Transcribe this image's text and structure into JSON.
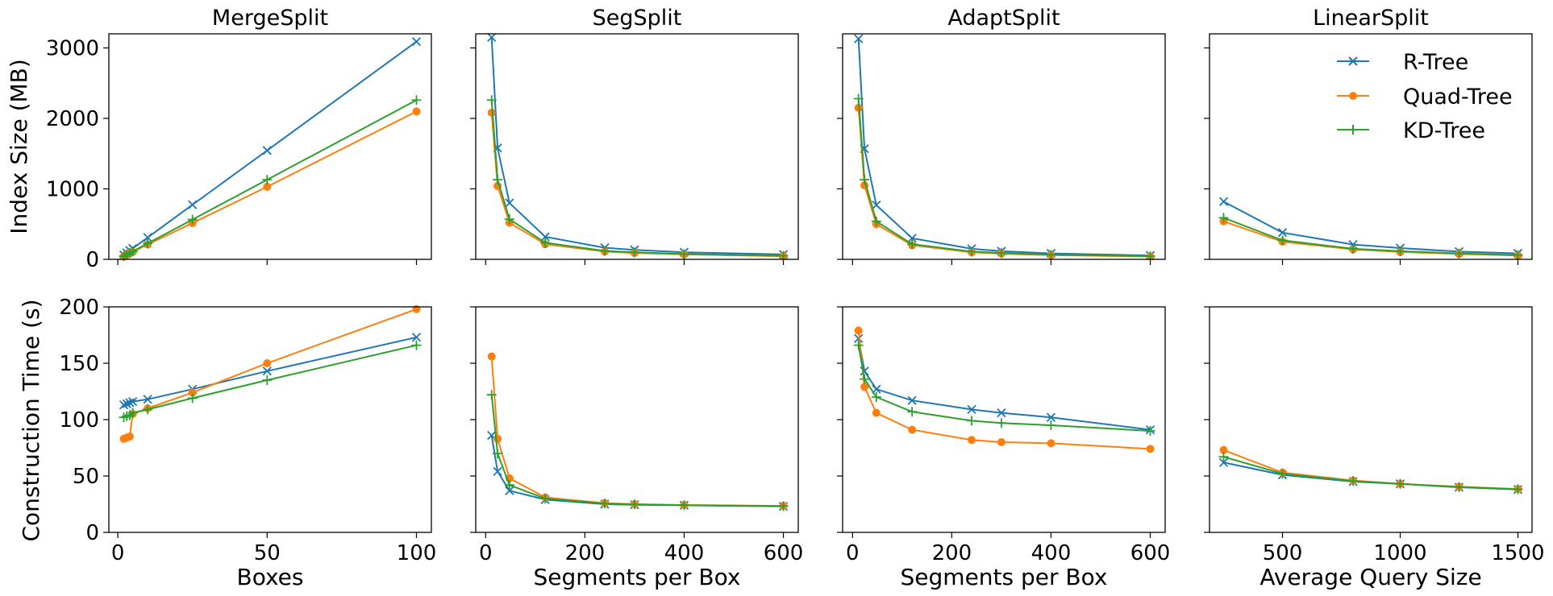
{
  "figure": {
    "row_labels": [
      "Index Size (MB)",
      "Construction Time (s)"
    ],
    "series_names": [
      "R-Tree",
      "Quad-Tree",
      "KD-Tree"
    ],
    "series_colors": [
      "#1f77b4",
      "#ff7f0e",
      "#2ca02c"
    ],
    "series_markers": [
      "x",
      "o",
      "+"
    ]
  },
  "chart_data": [
    {
      "id": "size-mergesplit",
      "type": "line",
      "row": 0,
      "col": 0,
      "title": "MergeSplit",
      "xlabel": "",
      "ylabel": "Index Size (MB)",
      "xlim": [
        -3,
        105
      ],
      "ylim": [
        0,
        3200
      ],
      "xticks": [
        0,
        50,
        100
      ],
      "xtick_labels": [],
      "yticks": [
        0,
        1000,
        2000,
        3000
      ],
      "ytick_labels": [
        "0",
        "1000",
        "2000",
        "3000"
      ],
      "x": [
        2,
        3,
        4,
        5,
        10,
        25,
        50,
        100
      ],
      "series": [
        {
          "name": "R-Tree",
          "values": [
            62,
            93,
            125,
            155,
            310,
            775,
            1545,
            3090
          ]
        },
        {
          "name": "Quad-Tree",
          "values": [
            42,
            63,
            84,
            105,
            210,
            515,
            1030,
            2100
          ]
        },
        {
          "name": "KD-Tree",
          "values": [
            45,
            68,
            90,
            113,
            226,
            565,
            1130,
            2260
          ]
        }
      ]
    },
    {
      "id": "size-segsplit",
      "type": "line",
      "row": 0,
      "col": 1,
      "title": "SegSplit",
      "xlabel": "",
      "ylabel": "",
      "xlim": [
        -20,
        630
      ],
      "ylim": [
        0,
        3200
      ],
      "xticks": [
        0,
        200,
        400,
        600
      ],
      "xtick_labels": [],
      "yticks": [
        0,
        1000,
        2000,
        3000
      ],
      "ytick_labels": [],
      "x": [
        12,
        24,
        48,
        120,
        240,
        300,
        400,
        600
      ],
      "series": [
        {
          "name": "R-Tree",
          "values": [
            3150,
            1580,
            800,
            320,
            165,
            135,
            100,
            70
          ]
        },
        {
          "name": "Quad-Tree",
          "values": [
            2080,
            1040,
            520,
            215,
            110,
            90,
            70,
            45
          ]
        },
        {
          "name": "KD-Tree",
          "values": [
            2260,
            1130,
            570,
            235,
            120,
            100,
            75,
            50
          ]
        }
      ]
    },
    {
      "id": "size-adaptsplit",
      "type": "line",
      "row": 0,
      "col": 2,
      "title": "AdaptSplit",
      "xlabel": "",
      "ylabel": "",
      "xlim": [
        -20,
        630
      ],
      "ylim": [
        0,
        3200
      ],
      "xticks": [
        0,
        200,
        400,
        600
      ],
      "xtick_labels": [],
      "yticks": [
        0,
        1000,
        2000,
        3000
      ],
      "ytick_labels": [],
      "x": [
        12,
        24,
        48,
        120,
        240,
        300,
        400,
        600
      ],
      "series": [
        {
          "name": "R-Tree",
          "values": [
            3130,
            1570,
            770,
            300,
            150,
            115,
            85,
            55
          ]
        },
        {
          "name": "Quad-Tree",
          "values": [
            2150,
            1050,
            500,
            200,
            100,
            80,
            60,
            40
          ]
        },
        {
          "name": "KD-Tree",
          "values": [
            2280,
            1130,
            540,
            215,
            110,
            90,
            65,
            45
          ]
        }
      ]
    },
    {
      "id": "size-linearsplit",
      "type": "line",
      "row": 0,
      "col": 3,
      "title": "LinearSplit",
      "xlabel": "",
      "ylabel": "",
      "xlim": [
        190,
        1560
      ],
      "ylim": [
        0,
        3200
      ],
      "xticks": [
        500,
        1000,
        1500
      ],
      "xtick_labels": [],
      "yticks": [
        0,
        1000,
        2000,
        3000
      ],
      "ytick_labels": [],
      "x": [
        250,
        500,
        800,
        1000,
        1250,
        1500
      ],
      "series": [
        {
          "name": "R-Tree",
          "values": [
            820,
            380,
            210,
            160,
            110,
            85
          ]
        },
        {
          "name": "Quad-Tree",
          "values": [
            540,
            250,
            140,
            105,
            75,
            55
          ]
        },
        {
          "name": "KD-Tree",
          "values": [
            590,
            270,
            150,
            115,
            85,
            60
          ]
        }
      ]
    },
    {
      "id": "time-mergesplit",
      "type": "line",
      "row": 1,
      "col": 0,
      "title": "",
      "xlabel": "Boxes",
      "ylabel": "Construction Time (s)",
      "xlim": [
        -3,
        105
      ],
      "ylim": [
        0,
        200
      ],
      "xticks": [
        0,
        50,
        100
      ],
      "xtick_labels": [
        "0",
        "50",
        "100"
      ],
      "yticks": [
        0,
        50,
        100,
        150,
        200
      ],
      "ytick_labels": [
        "0",
        "50",
        "100",
        "150",
        "200"
      ],
      "x": [
        2,
        3,
        4,
        5,
        10,
        25,
        50,
        100
      ],
      "series": [
        {
          "name": "R-Tree",
          "values": [
            113,
            114,
            115,
            116,
            118,
            127,
            143,
            173
          ]
        },
        {
          "name": "Quad-Tree",
          "values": [
            83,
            84,
            85,
            105,
            110,
            124,
            150,
            198
          ]
        },
        {
          "name": "KD-Tree",
          "values": [
            102,
            103,
            104,
            106,
            109,
            119,
            135,
            166
          ]
        }
      ]
    },
    {
      "id": "time-segsplit",
      "type": "line",
      "row": 1,
      "col": 1,
      "title": "",
      "xlabel": "Segments per Box",
      "ylabel": "",
      "xlim": [
        -20,
        630
      ],
      "ylim": [
        0,
        200
      ],
      "xticks": [
        0,
        200,
        400,
        600
      ],
      "xtick_labels": [
        "0",
        "200",
        "400",
        "600"
      ],
      "yticks": [
        0,
        50,
        100,
        150,
        200
      ],
      "ytick_labels": [],
      "x": [
        12,
        24,
        48,
        120,
        240,
        300,
        400,
        600
      ],
      "series": [
        {
          "name": "R-Tree",
          "values": [
            86,
            54,
            37,
            29,
            25,
            24.5,
            24,
            23
          ]
        },
        {
          "name": "Quad-Tree",
          "values": [
            156,
            83,
            48,
            31,
            26,
            25,
            24.3,
            23.5
          ]
        },
        {
          "name": "KD-Tree",
          "values": [
            122,
            70,
            42,
            30,
            25.5,
            24.8,
            24.1,
            23.3
          ]
        }
      ]
    },
    {
      "id": "time-adaptsplit",
      "type": "line",
      "row": 1,
      "col": 2,
      "title": "",
      "xlabel": "Segments per Box",
      "ylabel": "",
      "xlim": [
        -20,
        630
      ],
      "ylim": [
        0,
        200
      ],
      "xticks": [
        0,
        200,
        400,
        600
      ],
      "xtick_labels": [
        "0",
        "200",
        "400",
        "600"
      ],
      "yticks": [
        0,
        50,
        100,
        150,
        200
      ],
      "ytick_labels": [],
      "x": [
        12,
        24,
        48,
        120,
        240,
        300,
        400,
        600
      ],
      "series": [
        {
          "name": "R-Tree",
          "values": [
            172,
            143,
            127,
            117,
            109,
            106,
            102,
            91
          ]
        },
        {
          "name": "Quad-Tree",
          "values": [
            179,
            129,
            106,
            91,
            82,
            80,
            79,
            74
          ]
        },
        {
          "name": "KD-Tree",
          "values": [
            166,
            136,
            120,
            107,
            99,
            97,
            95,
            90
          ]
        }
      ]
    },
    {
      "id": "time-linearsplit",
      "type": "line",
      "row": 1,
      "col": 3,
      "title": "",
      "xlabel": "Average Query Size",
      "ylabel": "",
      "xlim": [
        190,
        1560
      ],
      "ylim": [
        0,
        200
      ],
      "xticks": [
        500,
        1000,
        1500
      ],
      "xtick_labels": [
        "500",
        "1000",
        "1500"
      ],
      "yticks": [
        0,
        50,
        100,
        150,
        200
      ],
      "ytick_labels": [],
      "x": [
        250,
        500,
        800,
        1000,
        1250,
        1500
      ],
      "series": [
        {
          "name": "R-Tree",
          "values": [
            62,
            51,
            45,
            43,
            40,
            38
          ]
        },
        {
          "name": "Quad-Tree",
          "values": [
            73,
            53,
            46,
            43,
            40.5,
            38.5
          ]
        },
        {
          "name": "KD-Tree",
          "values": [
            67,
            52,
            45.5,
            43,
            40.2,
            38.2
          ]
        }
      ]
    }
  ]
}
